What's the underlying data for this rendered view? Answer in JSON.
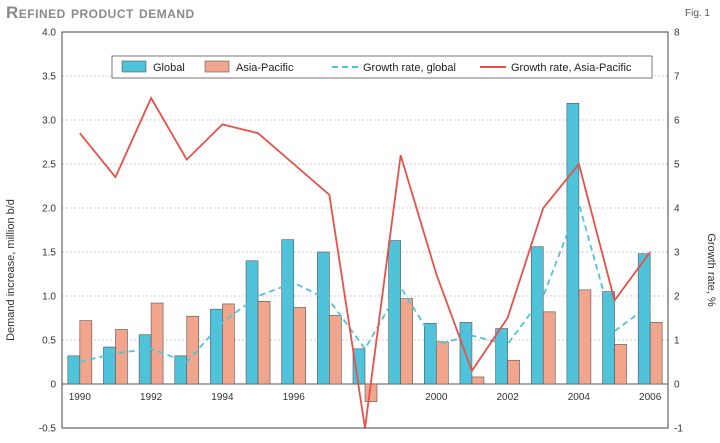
{
  "header": {
    "title": "Refined product demand",
    "fig_label": "Fig. 1"
  },
  "chart_data": {
    "type": "bar",
    "title": "Refined product demand",
    "ylabel": "Demand increase, million b/d",
    "y2label": "Growth rate, %",
    "ylim": [
      -0.5,
      4.0
    ],
    "y2lim": [
      -1,
      8
    ],
    "yticks": [
      "-0.5",
      "0",
      "0.5",
      "1.0",
      "1.5",
      "2.0",
      "2.5",
      "3.0",
      "3.5",
      "4.0"
    ],
    "y2ticks": [
      "-1",
      "0",
      "1",
      "2",
      "3",
      "4",
      "5",
      "6",
      "7",
      "8"
    ],
    "categories": [
      1990,
      1991,
      1992,
      1993,
      1994,
      1995,
      1996,
      1997,
      1998,
      1999,
      2000,
      2001,
      2002,
      2003,
      2004,
      2005,
      2006
    ],
    "x_tick_labels": [
      "1990",
      "1992",
      "1994",
      "1996",
      "2000",
      "2002",
      "2004",
      "2006"
    ],
    "x_tick_years": [
      1990,
      1992,
      1994,
      1996,
      2000,
      2002,
      2004,
      2006
    ],
    "grid": true,
    "legend_position": "top",
    "series": [
      {
        "name": "Global",
        "kind": "bar",
        "axis": "left",
        "color": "#4fc3d9",
        "values": [
          0.32,
          0.42,
          0.56,
          0.32,
          0.85,
          1.4,
          1.64,
          1.5,
          0.4,
          1.63,
          0.69,
          0.7,
          0.63,
          1.56,
          3.19,
          1.05,
          1.48
        ]
      },
      {
        "name": "Asia-Pacific",
        "kind": "bar",
        "axis": "left",
        "color": "#f0a58c",
        "values": [
          0.72,
          0.62,
          0.92,
          0.77,
          0.91,
          0.94,
          0.87,
          0.78,
          -0.2,
          0.97,
          0.48,
          0.08,
          0.27,
          0.82,
          1.07,
          0.45,
          0.7
        ]
      },
      {
        "name": "Growth rate, global",
        "kind": "line",
        "style": "dashed",
        "axis": "right",
        "color": "#4fc3d9",
        "values": [
          0.5,
          0.7,
          0.8,
          0.5,
          1.4,
          2.0,
          2.3,
          1.9,
          0.8,
          2.2,
          0.9,
          1.1,
          0.9,
          2.0,
          4.1,
          1.2,
          1.8
        ]
      },
      {
        "name": "Growth rate, Asia-Pacific",
        "kind": "line",
        "style": "solid",
        "axis": "right",
        "color": "#e8504a",
        "values": [
          5.7,
          4.7,
          6.5,
          5.1,
          5.9,
          5.7,
          5.0,
          4.3,
          -1.0,
          5.2,
          2.5,
          0.3,
          1.5,
          4.0,
          5.0,
          1.9,
          3.0
        ]
      }
    ]
  }
}
